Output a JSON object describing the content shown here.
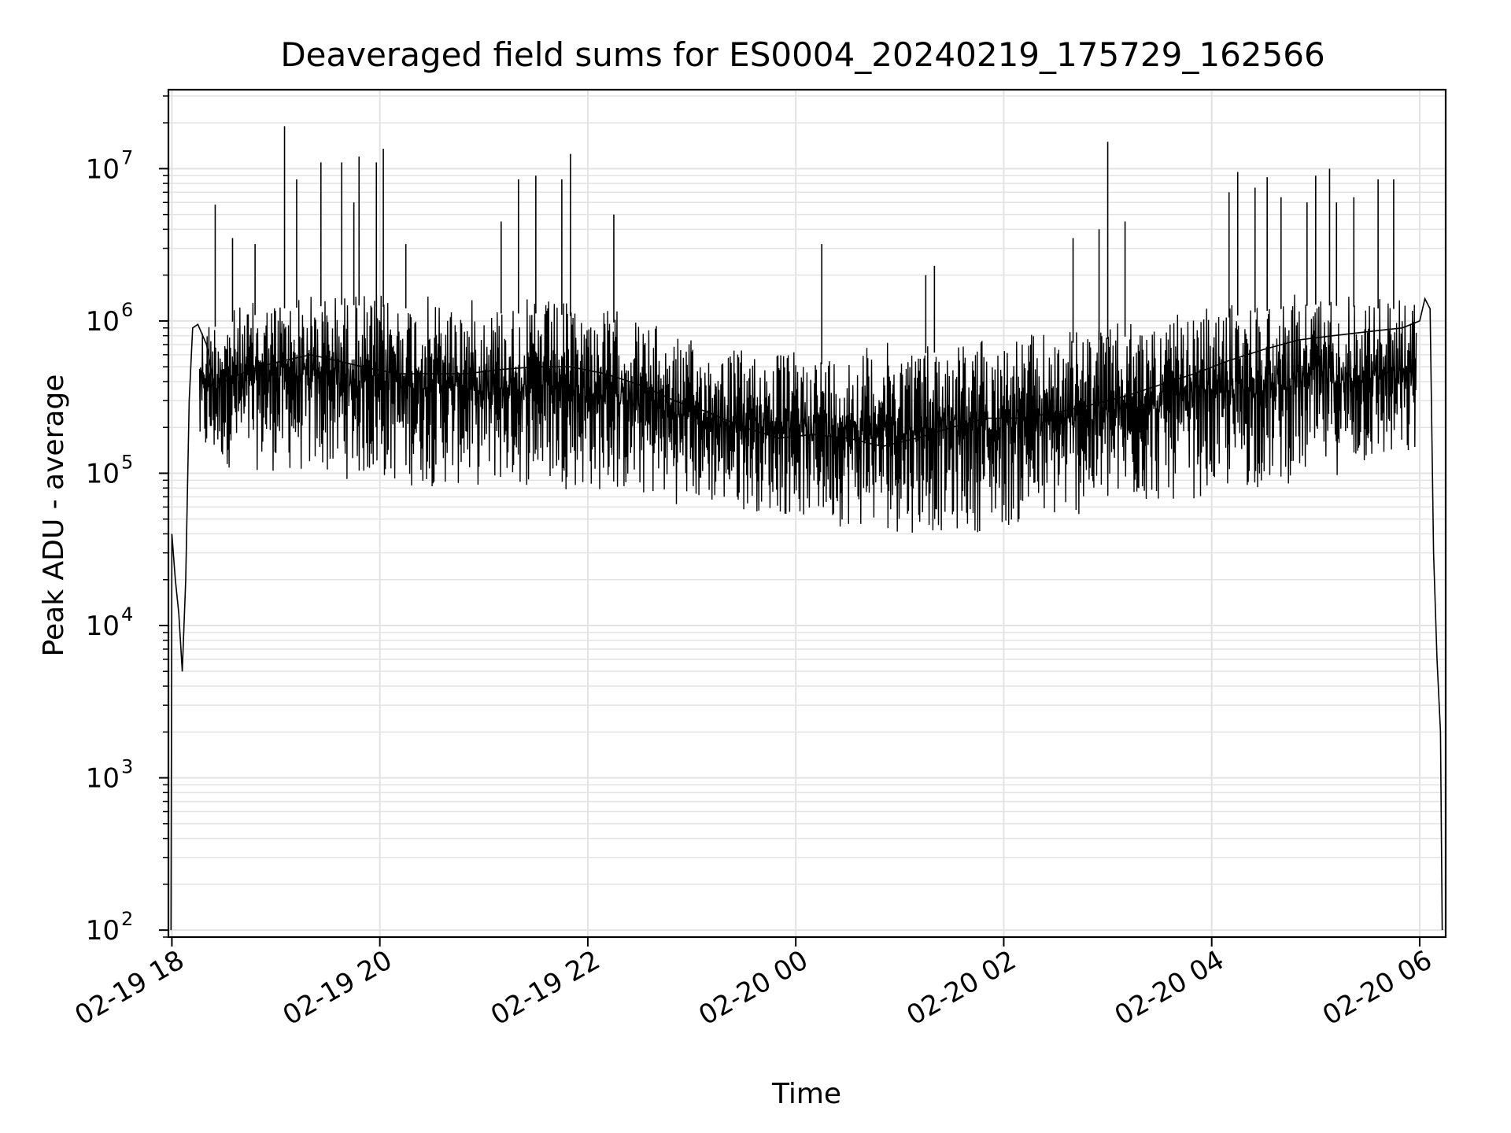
{
  "chart_data": {
    "type": "line",
    "title": "Deaveraged field sums for ES0004_20240219_175729_162566",
    "xlabel": "Time",
    "ylabel": "Peak ADU - average",
    "x_ticks": [
      "02-19 18",
      "02-19 20",
      "02-19 22",
      "02-20 00",
      "02-20 02",
      "02-20 04",
      "02-20 06"
    ],
    "y_ticks": [
      {
        "value": 100,
        "base": "10",
        "exp": "2"
      },
      {
        "value": 1000,
        "base": "10",
        "exp": "3"
      },
      {
        "value": 10000,
        "base": "10",
        "exp": "4"
      },
      {
        "value": 100000,
        "base": "10",
        "exp": "5"
      },
      {
        "value": 1000000,
        "base": "10",
        "exp": "6"
      },
      {
        "value": 10000000,
        "base": "10",
        "exp": "7"
      }
    ],
    "xlim": [
      "2024-02-19 17:58",
      "2024-02-20 06:15"
    ],
    "ylim": [
      90,
      33000000
    ],
    "yscale": "log",
    "grid": "on",
    "legend": "none",
    "colors": {
      "line": "#000000",
      "grid": "#e3e3e3",
      "axes": "#000000"
    },
    "series": [
      {
        "x": [
          "2024-02-19 17:59:30",
          "2024-02-19 18:00:00",
          "2024-02-19 18:02:00",
          "2024-02-19 18:04:00",
          "2024-02-19 18:06:00",
          "2024-02-19 18:08:00",
          "2024-02-19 18:10:00",
          "2024-02-19 18:12:00",
          "2024-02-19 18:15:00",
          "2024-02-19 18:20:00",
          "2024-02-19 18:25:00",
          "2024-02-19 18:30:00",
          "2024-02-19 18:40:00",
          "2024-02-19 18:50:00",
          "2024-02-19 19:05:00",
          "2024-02-19 19:20:00",
          "2024-02-19 19:35:00",
          "2024-02-19 19:50:00",
          "2024-02-19 20:10:00",
          "2024-02-19 20:30:00",
          "2024-02-19 20:50:00",
          "2024-02-19 21:10:00",
          "2024-02-19 21:30:00",
          "2024-02-19 21:50:00",
          "2024-02-19 22:10:00",
          "2024-02-19 22:30:00",
          "2024-02-19 22:50:00",
          "2024-02-19 23:10:00",
          "2024-02-19 23:30:00",
          "2024-02-19 23:50:00",
          "2024-02-20 00:10:00",
          "2024-02-20 00:30:00",
          "2024-02-20 00:50:00",
          "2024-02-20 01:10:00",
          "2024-02-20 01:30:00",
          "2024-02-20 01:50:00",
          "2024-02-20 02:10:00",
          "2024-02-20 02:30:00",
          "2024-02-20 02:50:00",
          "2024-02-20 03:10:00",
          "2024-02-20 03:30:00",
          "2024-02-20 03:50:00",
          "2024-02-20 04:10:00",
          "2024-02-20 04:30:00",
          "2024-02-20 04:50:00",
          "2024-02-20 05:10:00",
          "2024-02-20 05:30:00",
          "2024-02-20 05:50:00",
          "2024-02-20 06:00:00",
          "2024-02-20 06:03:00",
          "2024-02-20 06:06:00",
          "2024-02-20 06:08:00",
          "2024-02-20 06:10:00",
          "2024-02-20 06:12:00",
          "2024-02-20 06:13:00"
        ],
        "y": [
          100,
          40000,
          20000,
          12000,
          5000,
          20000,
          300000,
          900000,
          950000,
          700000,
          350000,
          400000,
          450000,
          500000,
          550000,
          600000,
          550000,
          500000,
          450000,
          450000,
          450000,
          480000,
          500000,
          500000,
          450000,
          380000,
          300000,
          250000,
          200000,
          170000,
          180000,
          170000,
          150000,
          170000,
          200000,
          230000,
          230000,
          250000,
          280000,
          320000,
          380000,
          450000,
          550000,
          650000,
          750000,
          800000,
          850000,
          900000,
          1000000,
          1400000,
          1200000,
          30000,
          6000,
          2000,
          100
        ]
      }
    ],
    "spikes": {
      "x": [
        "2024-02-19 18:25:00",
        "2024-02-19 18:35:00",
        "2024-02-19 18:48:00",
        "2024-02-19 19:05:00",
        "2024-02-19 19:12:00",
        "2024-02-19 19:26:00",
        "2024-02-19 19:38:00",
        "2024-02-19 19:45:00",
        "2024-02-19 19:48:00",
        "2024-02-19 19:58:00",
        "2024-02-19 20:02:00",
        "2024-02-19 20:15:00",
        "2024-02-19 21:10:00",
        "2024-02-19 21:20:00",
        "2024-02-19 21:30:00",
        "2024-02-19 21:45:00",
        "2024-02-19 21:50:00",
        "2024-02-19 22:15:00",
        "2024-02-20 00:15:00",
        "2024-02-20 01:15:00",
        "2024-02-20 01:20:00",
        "2024-02-20 02:40:00",
        "2024-02-20 02:55:00",
        "2024-02-20 03:00:00",
        "2024-02-20 03:10:00",
        "2024-02-20 04:10:00",
        "2024-02-20 04:15:00",
        "2024-02-20 04:25:00",
        "2024-02-20 04:32:00",
        "2024-02-20 04:40:00",
        "2024-02-20 04:55:00",
        "2024-02-20 05:00:00",
        "2024-02-20 05:08:00",
        "2024-02-20 05:12:00",
        "2024-02-20 05:22:00",
        "2024-02-20 05:36:00",
        "2024-02-20 05:45:00"
      ],
      "y": [
        5800000,
        3500000,
        3200000,
        19000000,
        8500000,
        11000000,
        11000000,
        6000000,
        12000000,
        11000000,
        13500000,
        3200000,
        4500000,
        8500000,
        9000000,
        8500000,
        12500000,
        5000000,
        3200000,
        2000000,
        2300000,
        3500000,
        4000000,
        15000000,
        4500000,
        7000000,
        9500000,
        7500000,
        8800000,
        6500000,
        6000000,
        9000000,
        10000000,
        6000000,
        6500000,
        8500000,
        8500000
      ]
    },
    "band": {
      "x": [
        "2024-02-19 18:20:00",
        "2024-02-19 19:00:00",
        "2024-02-19 19:40:00",
        "2024-02-19 20:20:00",
        "2024-02-19 21:00:00",
        "2024-02-19 21:40:00",
        "2024-02-19 22:20:00",
        "2024-02-19 23:00:00",
        "2024-02-19 23:40:00",
        "2024-02-20 00:20:00",
        "2024-02-20 01:00:00",
        "2024-02-20 01:40:00",
        "2024-02-20 02:20:00",
        "2024-02-20 03:00:00",
        "2024-02-20 03:40:00",
        "2024-02-20 04:20:00",
        "2024-02-20 05:00:00",
        "2024-02-20 05:40:00"
      ],
      "low": [
        110000,
        100000,
        90000,
        80000,
        80000,
        80000,
        70000,
        60000,
        55000,
        45000,
        40000,
        40000,
        45000,
        55000,
        65000,
        75000,
        90000,
        110000
      ],
      "high": [
        1100000,
        1500000,
        1600000,
        1500000,
        1400000,
        1400000,
        1200000,
        750000,
        650000,
        650000,
        750000,
        800000,
        850000,
        950000,
        1100000,
        1400000,
        1600000,
        1500000
      ]
    }
  }
}
